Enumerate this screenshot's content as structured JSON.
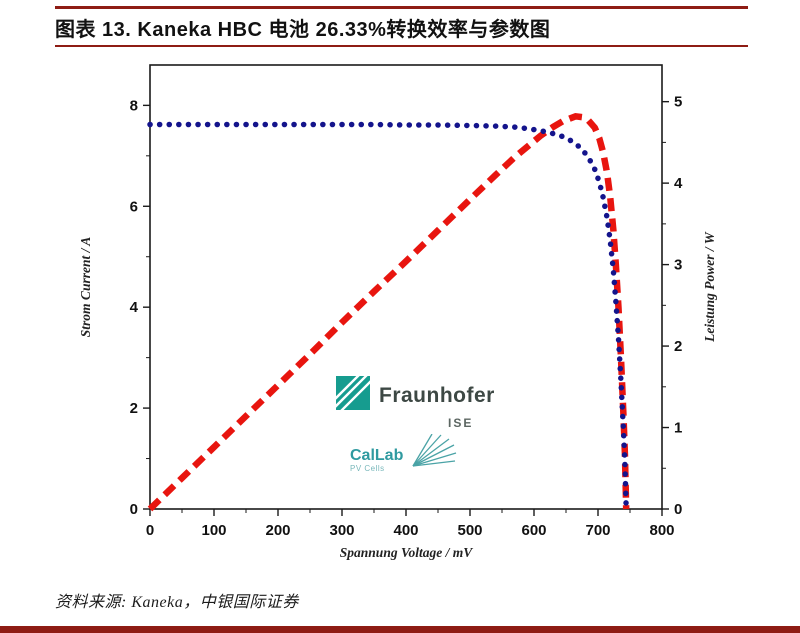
{
  "header": {
    "title": "图表 13. Kaneka HBC 电池 26.33%转换效率与参数图",
    "accent_color": "#8e1c14"
  },
  "footer": {
    "source": "资料来源: Kaneka，中银国际证券"
  },
  "logos": {
    "fraunhofer": {
      "name": "Fraunhofer",
      "sub": "ISE",
      "square_color": "#169c8f",
      "text_color": "#3d4844"
    },
    "callab": {
      "name": "CalLab",
      "sub": "PV Cells",
      "color": "#2f9aa0"
    }
  },
  "icons": {
    "fraunhofer_mark": "green-square-with-white-diagonal-stripes",
    "callab_fan": "teal-radiating-fan-lines"
  },
  "chart_data": {
    "type": "line",
    "title": "",
    "xlabel": "Spannung Voltage / mV",
    "ylabel_left": "Strom Current / A",
    "ylabel_right": "Leistung Power / W",
    "xlim": [
      0,
      800
    ],
    "ylim_left": [
      0,
      8.8
    ],
    "ylim_right": [
      0,
      5.45
    ],
    "x_ticks": [
      0,
      100,
      200,
      300,
      400,
      500,
      600,
      700,
      800
    ],
    "x_minor_step": 50,
    "y_left_ticks": [
      0,
      2,
      4,
      6,
      8
    ],
    "y_left_minor_step": 1,
    "y_right_ticks": [
      0,
      1,
      2,
      3,
      4,
      5
    ],
    "y_right_minor_step": 0.5,
    "grid": false,
    "legend": "none",
    "key_values": {
      "isc_A": 7.62,
      "voc_mV": 744,
      "pmax_W": 4.82,
      "vmpp_mV": 665,
      "efficiency_pct": 26.33
    },
    "series": [
      {
        "id": "power-curve",
        "name": "Leistung Power P(V)",
        "axis": "right",
        "color": "#e8150f",
        "style": "dashed",
        "points": [
          [
            0,
            0
          ],
          [
            50,
            0.38
          ],
          [
            100,
            0.76
          ],
          [
            150,
            1.14
          ],
          [
            200,
            1.52
          ],
          [
            250,
            1.9
          ],
          [
            300,
            2.29
          ],
          [
            350,
            2.67
          ],
          [
            400,
            3.04
          ],
          [
            450,
            3.42
          ],
          [
            500,
            3.8
          ],
          [
            540,
            4.1
          ],
          [
            570,
            4.32
          ],
          [
            590,
            4.45
          ],
          [
            610,
            4.58
          ],
          [
            630,
            4.69
          ],
          [
            645,
            4.76
          ],
          [
            655,
            4.79
          ],
          [
            665,
            4.82
          ],
          [
            675,
            4.81
          ],
          [
            685,
            4.77
          ],
          [
            695,
            4.68
          ],
          [
            702,
            4.55
          ],
          [
            708,
            4.38
          ],
          [
            714,
            4.13
          ],
          [
            719,
            3.83
          ],
          [
            724,
            3.42
          ],
          [
            728,
            2.99
          ],
          [
            732,
            2.47
          ],
          [
            736,
            1.85
          ],
          [
            740,
            1.11
          ],
          [
            742,
            0.68
          ],
          [
            744,
            0
          ]
        ]
      },
      {
        "id": "current-curve",
        "name": "Strom Current I(V)",
        "axis": "left",
        "color": "#14148c",
        "style": "dotted",
        "points": [
          [
            0,
            7.62
          ],
          [
            50,
            7.62
          ],
          [
            100,
            7.62
          ],
          [
            150,
            7.62
          ],
          [
            200,
            7.62
          ],
          [
            250,
            7.62
          ],
          [
            300,
            7.62
          ],
          [
            350,
            7.62
          ],
          [
            400,
            7.61
          ],
          [
            450,
            7.61
          ],
          [
            500,
            7.6
          ],
          [
            540,
            7.59
          ],
          [
            570,
            7.57
          ],
          [
            590,
            7.54
          ],
          [
            610,
            7.5
          ],
          [
            630,
            7.44
          ],
          [
            645,
            7.38
          ],
          [
            655,
            7.32
          ],
          [
            665,
            7.24
          ],
          [
            675,
            7.13
          ],
          [
            685,
            6.97
          ],
          [
            695,
            6.73
          ],
          [
            702,
            6.48
          ],
          [
            708,
            6.18
          ],
          [
            714,
            5.78
          ],
          [
            719,
            5.32
          ],
          [
            724,
            4.72
          ],
          [
            728,
            4.1
          ],
          [
            732,
            3.38
          ],
          [
            736,
            2.52
          ],
          [
            740,
            1.5
          ],
          [
            742,
            0.92
          ],
          [
            744,
            0
          ]
        ]
      }
    ]
  }
}
